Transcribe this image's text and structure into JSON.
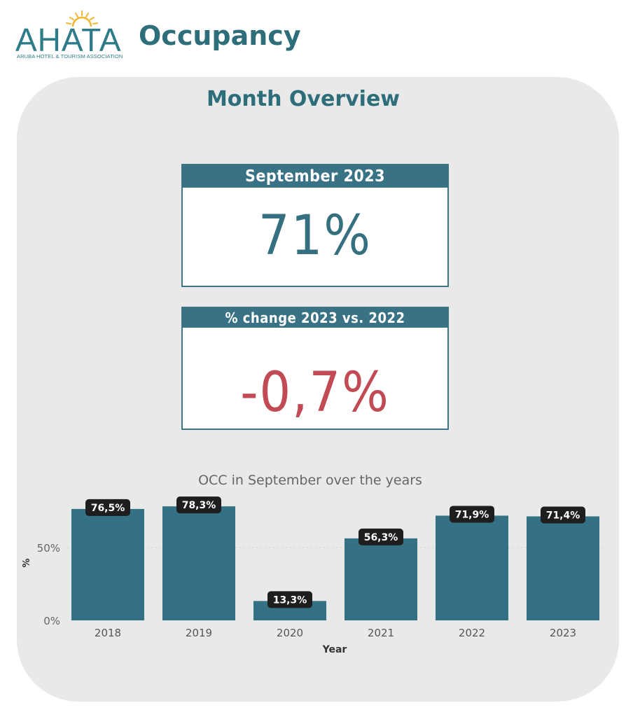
{
  "header": {
    "logo_word": "AHATA",
    "logo_subtitle": "ARUBA HOTEL & TOURISM ASSOCIATION",
    "title": "Occupancy"
  },
  "panel": {
    "title": "Month Overview"
  },
  "cards": {
    "occupancy": {
      "label": "September 2023",
      "value": "71%"
    },
    "change": {
      "label": "% change 2023 vs. 2022",
      "value": "-0,7%"
    }
  },
  "colors": {
    "bar": "#357184",
    "accent": "#2e6e7b",
    "negative": "#c24a55",
    "panel_bg": "#e9e9e9"
  },
  "chart_data": {
    "type": "bar",
    "title": "OCC in September over the years",
    "xlabel": "Year",
    "ylabel": "%",
    "categories": [
      "2018",
      "2019",
      "2020",
      "2021",
      "2022",
      "2023"
    ],
    "values": [
      76.5,
      78.3,
      13.3,
      56.3,
      71.9,
      71.4
    ],
    "data_labels": [
      "76,5%",
      "78,3%",
      "13,3%",
      "56,3%",
      "71,9%",
      "71,4%"
    ],
    "y_ticks": [
      {
        "value": 0,
        "label": "0%"
      },
      {
        "value": 50,
        "label": "50%"
      }
    ],
    "ylim": [
      0,
      80
    ],
    "grid": true
  }
}
